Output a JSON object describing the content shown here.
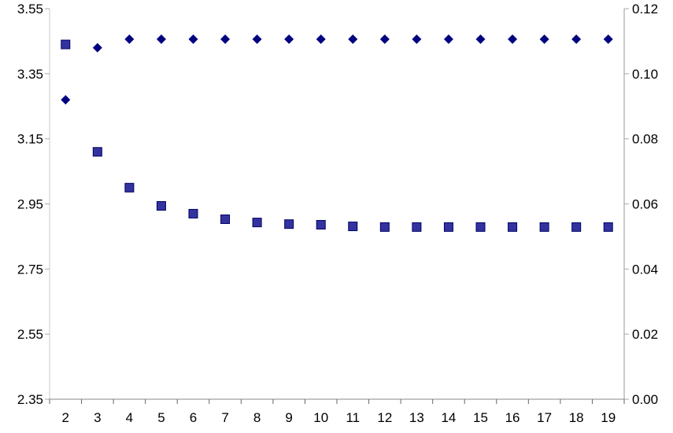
{
  "chart_data": {
    "type": "scatter",
    "title": "",
    "xlabel": "",
    "ylabel": "",
    "y2label": "",
    "categories": [
      2,
      3,
      4,
      5,
      6,
      7,
      8,
      9,
      10,
      11,
      12,
      13,
      14,
      15,
      16,
      17,
      18,
      19
    ],
    "ylim": [
      2.35,
      3.55
    ],
    "yticks": [
      "2.35",
      "2.55",
      "2.75",
      "2.95",
      "3.15",
      "3.35",
      "3.55"
    ],
    "y2lim": [
      0.0,
      0.12
    ],
    "y2ticks": [
      "0.00",
      "0.02",
      "0.04",
      "0.06",
      "0.08",
      "0.10",
      "0.12"
    ],
    "grid": false,
    "legend": "none",
    "series": [
      {
        "axis": "left",
        "marker": "diamond",
        "color": "#000080",
        "values": [
          3.27,
          3.43,
          3.456,
          3.456,
          3.456,
          3.456,
          3.456,
          3.456,
          3.456,
          3.456,
          3.456,
          3.456,
          3.456,
          3.456,
          3.456,
          3.456,
          3.456,
          3.456
        ]
      },
      {
        "axis": "right",
        "marker": "square",
        "color": "#3333a0",
        "values": [
          0.109,
          0.076,
          0.065,
          0.0594,
          0.057,
          0.0553,
          0.0543,
          0.0538,
          0.0536,
          0.0531,
          0.0529,
          0.0529,
          0.0529,
          0.0529,
          0.0529,
          0.0529,
          0.0529,
          0.0529
        ]
      }
    ]
  }
}
